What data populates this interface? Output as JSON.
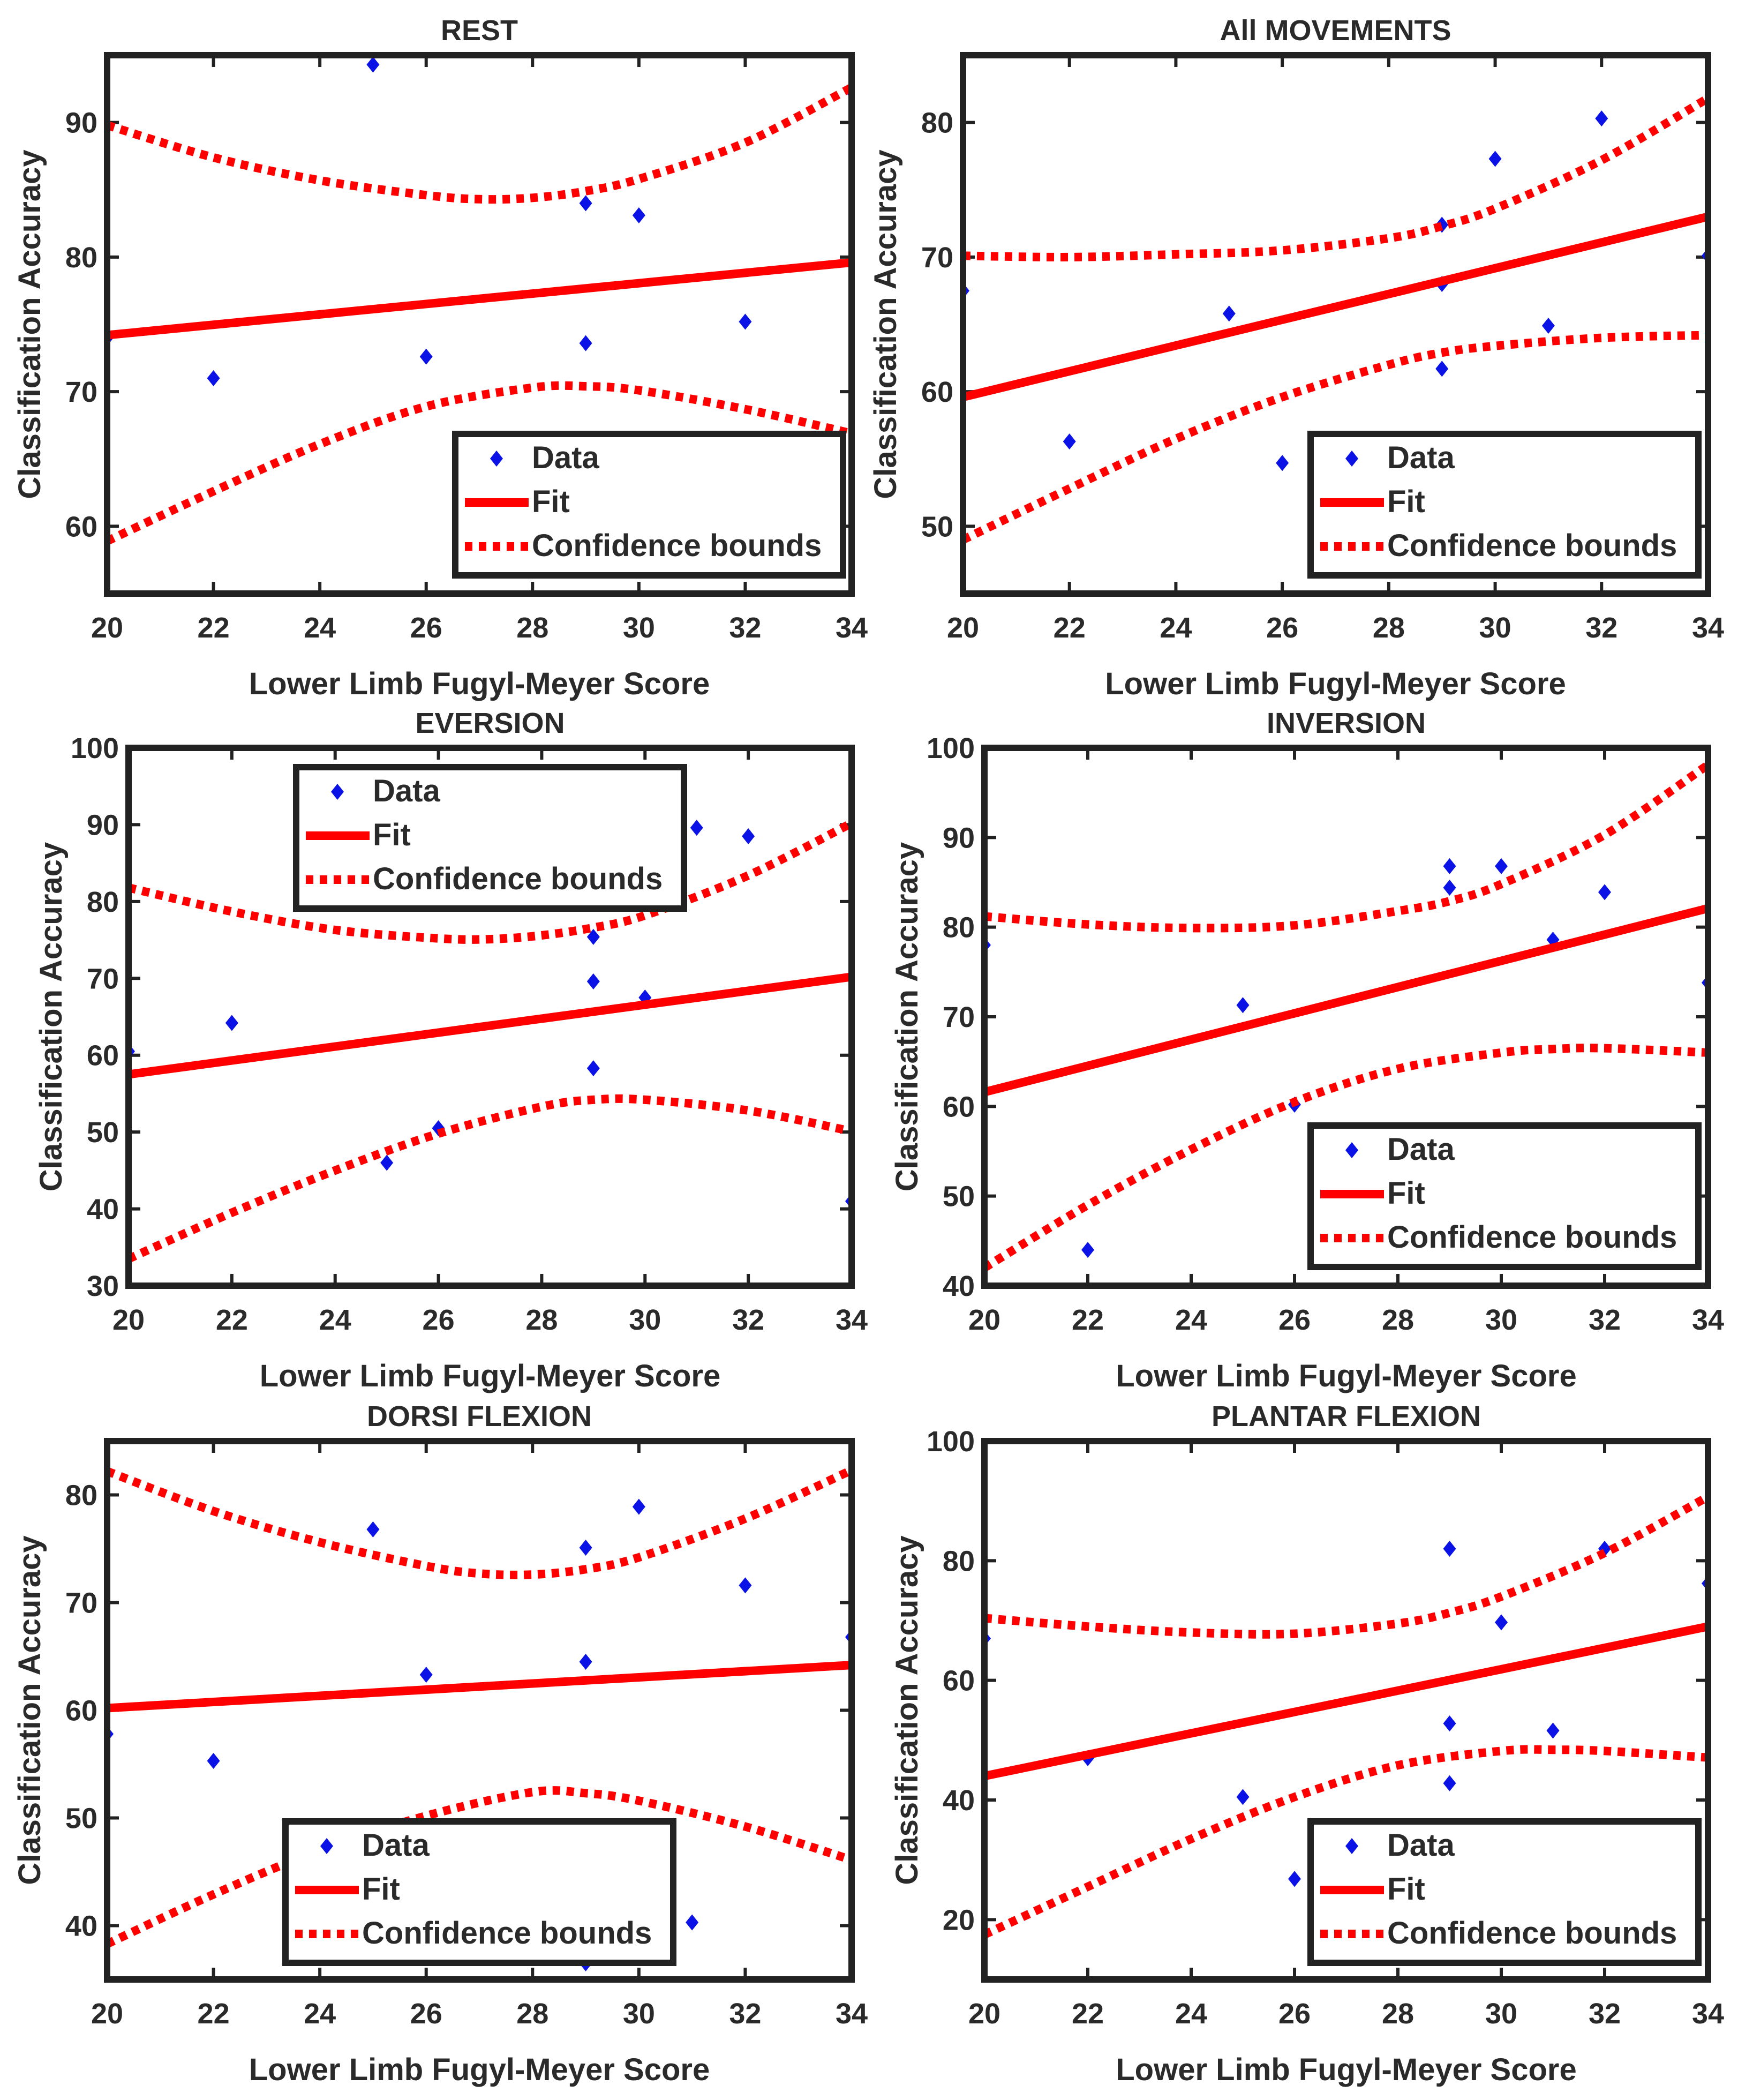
{
  "colors": {
    "data": "#0a12e6",
    "fit": "#ff0000",
    "bounds": "#ff0000",
    "axes": "#222222",
    "text": "#2a2a2a"
  },
  "legend_labels": {
    "data": "Data",
    "fit": "Fit",
    "bounds": "Confidence bounds"
  },
  "chart_data": [
    {
      "type": "scatter",
      "title": "REST",
      "xlabel": "Lower Limb Fugyl-Meyer Score",
      "ylabel": "Classification Accuracy",
      "xlim": [
        20,
        34
      ],
      "ylim": [
        55,
        95
      ],
      "xticks": [
        20,
        22,
        24,
        26,
        28,
        30,
        32,
        34
      ],
      "yticks": [
        60,
        70,
        80,
        90
      ],
      "legend_position": "bottom-right",
      "series": [
        {
          "name": "Data",
          "type": "scatter",
          "points": [
            [
              20,
              74
            ],
            [
              22,
              71
            ],
            [
              25,
              94.3
            ],
            [
              26,
              72.6
            ],
            [
              29,
              84
            ],
            [
              29,
              73.6
            ],
            [
              30,
              83.1
            ],
            [
              32,
              75.2
            ],
            [
              34,
              92.3
            ]
          ]
        },
        {
          "name": "Fit",
          "type": "line",
          "points": [
            [
              20,
              74.2
            ],
            [
              34,
              79.6
            ]
          ]
        },
        {
          "name": "Confidence bounds (upper)",
          "type": "dotted",
          "points": [
            [
              20,
              89.8
            ],
            [
              22,
              87.4
            ],
            [
              24,
              85.7
            ],
            [
              26,
              84.6
            ],
            [
              27,
              84.3
            ],
            [
              28,
              84.4
            ],
            [
              29,
              84.9
            ],
            [
              30,
              85.8
            ],
            [
              32,
              88.5
            ],
            [
              34,
              92.6
            ]
          ]
        },
        {
          "name": "Confidence bounds (lower)",
          "type": "dotted",
          "points": [
            [
              20,
              58.9
            ],
            [
              22,
              62.6
            ],
            [
              24,
              66.1
            ],
            [
              26,
              68.9
            ],
            [
              28,
              70.3
            ],
            [
              29,
              70.4
            ],
            [
              30,
              70.1
            ],
            [
              32,
              68.7
            ],
            [
              34,
              66.9
            ]
          ]
        }
      ]
    },
    {
      "type": "scatter",
      "title": "All MOVEMENTS",
      "xlabel": "Lower Limb Fugyl-Meyer Score",
      "ylabel": "Classification Accuracy",
      "xlim": [
        20,
        34
      ],
      "ylim": [
        45,
        85
      ],
      "xticks": [
        20,
        22,
        24,
        26,
        28,
        30,
        32,
        34
      ],
      "yticks": [
        50,
        60,
        70,
        80
      ],
      "legend_position": "bottom-right",
      "series": [
        {
          "name": "Data",
          "type": "scatter",
          "points": [
            [
              20,
              67.5
            ],
            [
              22,
              56.3
            ],
            [
              25,
              65.8
            ],
            [
              26,
              54.7
            ],
            [
              29,
              72.4
            ],
            [
              29,
              68
            ],
            [
              29,
              61.7
            ],
            [
              30,
              77.3
            ],
            [
              31,
              64.9
            ],
            [
              32,
              80.3
            ],
            [
              34,
              70.1
            ]
          ]
        },
        {
          "name": "Fit",
          "type": "line",
          "points": [
            [
              20,
              59.6
            ],
            [
              34,
              73
            ]
          ]
        },
        {
          "name": "Confidence bounds (upper)",
          "type": "dotted",
          "points": [
            [
              20,
              70.1
            ],
            [
              22,
              70
            ],
            [
              24,
              70.2
            ],
            [
              26,
              70.5
            ],
            [
              28,
              71.4
            ],
            [
              29,
              72.3
            ],
            [
              30,
              73.6
            ],
            [
              32,
              77.2
            ],
            [
              34,
              81.8
            ]
          ]
        },
        {
          "name": "Confidence bounds (lower)",
          "type": "dotted",
          "points": [
            [
              20,
              49
            ],
            [
              22,
              52.8
            ],
            [
              24,
              56.5
            ],
            [
              26,
              59.6
            ],
            [
              28,
              62
            ],
            [
              29,
              62.9
            ],
            [
              30,
              63.4
            ],
            [
              32,
              64
            ],
            [
              34,
              64.2
            ]
          ]
        }
      ]
    },
    {
      "type": "scatter",
      "title": "EVERSION",
      "xlabel": "Lower Limb Fugyl-Meyer Score",
      "ylabel": "Classification Accuracy",
      "xlim": [
        20,
        34
      ],
      "ylim": [
        30,
        100
      ],
      "xticks": [
        20,
        22,
        24,
        26,
        28,
        30,
        32,
        34
      ],
      "yticks": [
        30,
        40,
        50,
        60,
        70,
        80,
        90,
        100
      ],
      "legend_position": "top-center",
      "series": [
        {
          "name": "Data",
          "type": "scatter",
          "points": [
            [
              20,
              60.5
            ],
            [
              22,
              64.2
            ],
            [
              25,
              46
            ],
            [
              26,
              50.5
            ],
            [
              29,
              75.4
            ],
            [
              29,
              69.6
            ],
            [
              29,
              58.3
            ],
            [
              30,
              67.5
            ],
            [
              31,
              89.6
            ],
            [
              32,
              88.5
            ],
            [
              34,
              41
            ]
          ]
        },
        {
          "name": "Fit",
          "type": "line",
          "points": [
            [
              20,
              57.5
            ],
            [
              34,
              70.2
            ]
          ]
        },
        {
          "name": "Confidence bounds (upper)",
          "type": "dotted",
          "points": [
            [
              20,
              81.8
            ],
            [
              22,
              78.7
            ],
            [
              24,
              76.3
            ],
            [
              26,
              75.2
            ],
            [
              27,
              75.1
            ],
            [
              28,
              75.6
            ],
            [
              29,
              76.6
            ],
            [
              30,
              78.2
            ],
            [
              32,
              83.4
            ],
            [
              34,
              90.2
            ]
          ]
        },
        {
          "name": "Confidence bounds (lower)",
          "type": "dotted",
          "points": [
            [
              20,
              33.5
            ],
            [
              22,
              39.5
            ],
            [
              24,
              45
            ],
            [
              26,
              49.8
            ],
            [
              28,
              53.3
            ],
            [
              29,
              54.2
            ],
            [
              30,
              54.2
            ],
            [
              32,
              52.8
            ],
            [
              34,
              50.1
            ]
          ]
        }
      ]
    },
    {
      "type": "scatter",
      "title": "INVERSION",
      "xlabel": "Lower Limb Fugyl-Meyer Score",
      "ylabel": "Classification Accuracy",
      "xlim": [
        20,
        34
      ],
      "ylim": [
        40,
        100
      ],
      "xticks": [
        20,
        22,
        24,
        26,
        28,
        30,
        32,
        34
      ],
      "yticks": [
        40,
        50,
        60,
        70,
        80,
        90,
        100
      ],
      "legend_position": "bottom-right",
      "series": [
        {
          "name": "Data",
          "type": "scatter",
          "points": [
            [
              20,
              78
            ],
            [
              22,
              44
            ],
            [
              25,
              71.3
            ],
            [
              26,
              60.2
            ],
            [
              29,
              86.8
            ],
            [
              29,
              84.4
            ],
            [
              30,
              86.8
            ],
            [
              31,
              78.6
            ],
            [
              32,
              83.9
            ],
            [
              34,
              73.8
            ]
          ]
        },
        {
          "name": "Fit",
          "type": "line",
          "points": [
            [
              20,
              61.6
            ],
            [
              34,
              82.1
            ]
          ]
        },
        {
          "name": "Confidence bounds (upper)",
          "type": "dotted",
          "points": [
            [
              20,
              81.2
            ],
            [
              22,
              80.3
            ],
            [
              24,
              79.9
            ],
            [
              26,
              80.2
            ],
            [
              28,
              81.8
            ],
            [
              29,
              82.9
            ],
            [
              30,
              84.8
            ],
            [
              32,
              90.3
            ],
            [
              34,
              98.1
            ]
          ]
        },
        {
          "name": "Confidence bounds (lower)",
          "type": "dotted",
          "points": [
            [
              20,
              42
            ],
            [
              22,
              49
            ],
            [
              24,
              55.2
            ],
            [
              26,
              60.5
            ],
            [
              28,
              64.2
            ],
            [
              30,
              66
            ],
            [
              31,
              66.4
            ],
            [
              32,
              66.5
            ],
            [
              34,
              66
            ]
          ]
        }
      ]
    },
    {
      "type": "scatter",
      "title": "DORSI FLEXION",
      "xlabel": "Lower Limb Fugyl-Meyer Score",
      "ylabel": "Classification Accuracy",
      "xlim": [
        20,
        34
      ],
      "ylim": [
        35,
        85
      ],
      "xticks": [
        20,
        22,
        24,
        26,
        28,
        30,
        32,
        34
      ],
      "yticks": [
        40,
        50,
        60,
        70,
        80
      ],
      "legend_position": "bottom-center",
      "series": [
        {
          "name": "Data",
          "type": "scatter",
          "points": [
            [
              20,
              57.8
            ],
            [
              22,
              55.3
            ],
            [
              25,
              76.8
            ],
            [
              26,
              63.3
            ],
            [
              29,
              75.1
            ],
            [
              29,
              64.5
            ],
            [
              29,
              36.5
            ],
            [
              30,
              78.9
            ],
            [
              31,
              40.3
            ],
            [
              32,
              71.6
            ],
            [
              34,
              66.8
            ]
          ]
        },
        {
          "name": "Fit",
          "type": "line",
          "points": [
            [
              20,
              60.2
            ],
            [
              34,
              64.2
            ]
          ]
        },
        {
          "name": "Confidence bounds (upper)",
          "type": "dotted",
          "points": [
            [
              20,
              82.2
            ],
            [
              22,
              78.5
            ],
            [
              24,
              75.6
            ],
            [
              26,
              73.4
            ],
            [
              27,
              72.7
            ],
            [
              28,
              72.6
            ],
            [
              29,
              73.1
            ],
            [
              30,
              74.2
            ],
            [
              32,
              77.8
            ],
            [
              34,
              82.3
            ]
          ]
        },
        {
          "name": "Confidence bounds (lower)",
          "type": "dotted",
          "points": [
            [
              20,
              38.3
            ],
            [
              22,
              42.9
            ],
            [
              24,
              47
            ],
            [
              26,
              50.2
            ],
            [
              28,
              52.4
            ],
            [
              29,
              52.3
            ],
            [
              30,
              51.6
            ],
            [
              32,
              49.2
            ],
            [
              34,
              46.1
            ]
          ]
        }
      ]
    },
    {
      "type": "scatter",
      "title": "PLANTAR FLEXION",
      "xlabel": "Lower Limb Fugyl-Meyer Score",
      "ylabel": "Classification Accuracy",
      "xlim": [
        20,
        34
      ],
      "ylim": [
        10,
        100
      ],
      "xticks": [
        20,
        22,
        24,
        26,
        28,
        30,
        32,
        34
      ],
      "yticks": [
        20,
        40,
        60,
        80,
        100
      ],
      "legend_position": "bottom-right",
      "series": [
        {
          "name": "Data",
          "type": "scatter",
          "points": [
            [
              20,
              67
            ],
            [
              22,
              47
            ],
            [
              25,
              40.5
            ],
            [
              26,
              26.8
            ],
            [
              29,
              82
            ],
            [
              29,
              52.8
            ],
            [
              29,
              42.8
            ],
            [
              30,
              69.7
            ],
            [
              31,
              51.6
            ],
            [
              32,
              82
            ],
            [
              34,
              76.2
            ]
          ]
        },
        {
          "name": "Fit",
          "type": "line",
          "points": [
            [
              20,
              44
            ],
            [
              34,
              69
            ]
          ]
        },
        {
          "name": "Confidence bounds (upper)",
          "type": "dotted",
          "points": [
            [
              20,
              70.4
            ],
            [
              22,
              69
            ],
            [
              24,
              68
            ],
            [
              26,
              67.8
            ],
            [
              28,
              69.5
            ],
            [
              29,
              71.3
            ],
            [
              30,
              74
            ],
            [
              32,
              81.3
            ],
            [
              34,
              90.7
            ]
          ]
        },
        {
          "name": "Confidence bounds (lower)",
          "type": "dotted",
          "points": [
            [
              20,
              17.5
            ],
            [
              22,
              25.5
            ],
            [
              24,
              33.5
            ],
            [
              26,
              40.5
            ],
            [
              28,
              45.8
            ],
            [
              30,
              48.2
            ],
            [
              31,
              48.4
            ],
            [
              32,
              48.2
            ],
            [
              34,
              47.1
            ]
          ]
        }
      ]
    }
  ]
}
